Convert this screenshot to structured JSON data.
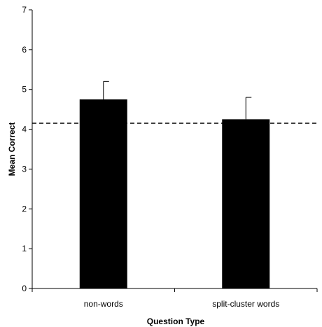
{
  "chart_data": {
    "type": "bar",
    "title": "",
    "xlabel": "Question Type",
    "ylabel": "Mean Correct",
    "categories": [
      "non-words",
      "split-cluster words"
    ],
    "values": [
      4.75,
      4.25
    ],
    "error_upper": [
      5.2,
      4.8
    ],
    "reference_line": {
      "y": 4.15,
      "style": "dashed"
    },
    "ylim": [
      0,
      7
    ],
    "yticks": [
      "0",
      "1",
      "2",
      "3",
      "4",
      "5",
      "6",
      "7"
    ],
    "grid": false,
    "legend": "none",
    "bar_color": "#000000"
  }
}
